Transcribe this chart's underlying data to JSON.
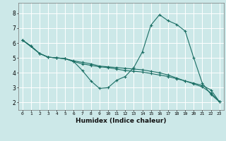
{
  "xlabel": "Humidex (Indice chaleur)",
  "bg_color": "#cce8e8",
  "grid_color": "#ffffff",
  "line_color": "#1a6e64",
  "xlim": [
    -0.5,
    23.5
  ],
  "ylim": [
    1.5,
    8.7
  ],
  "xticks": [
    0,
    1,
    2,
    3,
    4,
    5,
    6,
    7,
    8,
    9,
    10,
    11,
    12,
    13,
    14,
    15,
    16,
    17,
    18,
    19,
    20,
    21,
    22,
    23
  ],
  "yticks": [
    2,
    3,
    4,
    5,
    6,
    7,
    8
  ],
  "line1_x": [
    0,
    1,
    2,
    3,
    4,
    5,
    6,
    7,
    8,
    9,
    10,
    11,
    12,
    13,
    14,
    15,
    16,
    17,
    18,
    19,
    20,
    21,
    22,
    23
  ],
  "line1_y": [
    6.2,
    5.8,
    5.3,
    5.05,
    5.0,
    4.95,
    4.75,
    4.6,
    4.5,
    4.4,
    4.35,
    4.25,
    4.15,
    4.1,
    4.05,
    3.95,
    3.85,
    3.75,
    3.6,
    3.45,
    3.3,
    3.15,
    2.85,
    2.05
  ],
  "line2_x": [
    0,
    2,
    3,
    4,
    5,
    6,
    7,
    8,
    9,
    10,
    11,
    12,
    13,
    14,
    15,
    16,
    17,
    18,
    19,
    20,
    21,
    22,
    23
  ],
  "line2_y": [
    6.2,
    5.3,
    5.05,
    5.0,
    4.95,
    4.75,
    4.15,
    3.45,
    2.95,
    3.0,
    3.5,
    3.75,
    4.35,
    5.4,
    7.2,
    7.9,
    7.5,
    7.25,
    6.8,
    5.0,
    3.3,
    2.55,
    2.05
  ],
  "line3_x": [
    0,
    1,
    2,
    3,
    4,
    5,
    6,
    7,
    8,
    9,
    10,
    11,
    12,
    13,
    14,
    15,
    16,
    17,
    18,
    19,
    20,
    21,
    22,
    23
  ],
  "line3_y": [
    6.2,
    5.8,
    5.3,
    5.05,
    5.0,
    4.95,
    4.8,
    4.7,
    4.6,
    4.45,
    4.4,
    4.35,
    4.3,
    4.25,
    4.2,
    4.1,
    4.0,
    3.85,
    3.65,
    3.45,
    3.25,
    3.05,
    2.65,
    2.05
  ]
}
